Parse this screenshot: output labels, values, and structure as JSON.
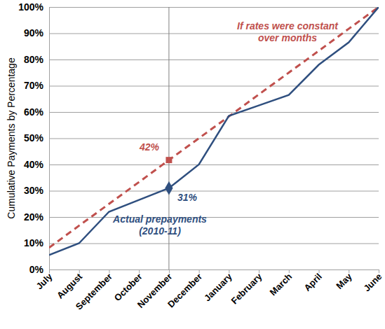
{
  "chart_data": {
    "type": "line",
    "y_label": "Cumulative Payments by Percentage",
    "categories": [
      "July",
      "August",
      "September",
      "October",
      "November",
      "December",
      "January",
      "February",
      "March",
      "April",
      "May",
      "June"
    ],
    "series": [
      {
        "name": "Actual prepayments (2010-11)",
        "color": "#2f4f7f",
        "line_style": "solid",
        "values": [
          5.5,
          10,
          22,
          26.5,
          31,
          40,
          58.5,
          62.5,
          66.5,
          78,
          86.5,
          100
        ]
      },
      {
        "name": "If rates were constant over months",
        "color": "#c0504d",
        "line_style": "dashed",
        "values": [
          8.3,
          16.7,
          25,
          33.3,
          41.7,
          50,
          58.3,
          66.7,
          75,
          83.3,
          91.7,
          100
        ]
      }
    ],
    "annotations": [
      {
        "text": "42%",
        "category": "November",
        "value": 41.7,
        "color": "#c0504d",
        "marker": "square"
      },
      {
        "text": "31%",
        "category": "November",
        "value": 31,
        "color": "#2f4f7f",
        "marker": "diamond"
      }
    ],
    "ylim": [
      0,
      100
    ],
    "yticks": [
      {
        "value": 0,
        "label": "0%"
      },
      {
        "value": 10,
        "label": "10%"
      },
      {
        "value": 20,
        "label": "20%"
      },
      {
        "value": 30,
        "label": "30%"
      },
      {
        "value": 40,
        "label": "40%"
      },
      {
        "value": 50,
        "label": "50%"
      },
      {
        "value": 60,
        "label": "60%"
      },
      {
        "value": 70,
        "label": "70%"
      },
      {
        "value": 80,
        "label": "80%"
      },
      {
        "value": 90,
        "label": "90%"
      },
      {
        "value": 100,
        "label": "100%"
      }
    ],
    "grid": true
  }
}
